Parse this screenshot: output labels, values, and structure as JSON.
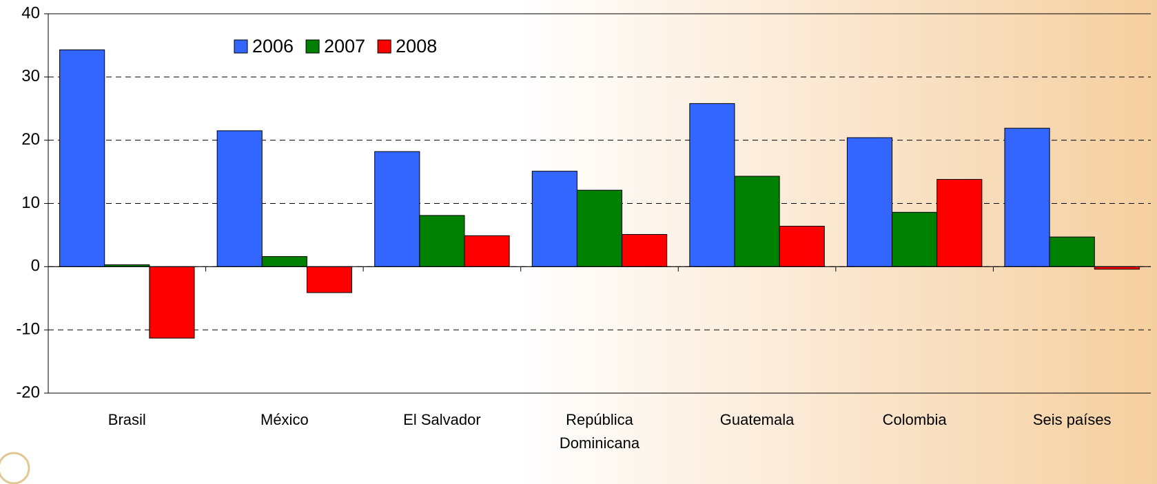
{
  "chart_data": {
    "type": "bar",
    "categories": [
      "Brasil",
      "México",
      "El Salvador",
      "República Dominicana",
      "Guatemala",
      "Colombia",
      "Seis países"
    ],
    "series": [
      {
        "name": "2006",
        "color": "#3366ff",
        "values": [
          34.3,
          21.5,
          18.2,
          15.1,
          25.8,
          20.4,
          21.9
        ]
      },
      {
        "name": "2007",
        "color": "#008000",
        "values": [
          0.3,
          1.6,
          8.1,
          12.1,
          14.3,
          8.6,
          4.7
        ]
      },
      {
        "name": "2008",
        "color": "#ff0000",
        "values": [
          -11.3,
          -4.1,
          4.9,
          5.1,
          6.4,
          13.8,
          -0.4
        ]
      }
    ],
    "ylim": [
      -20,
      40
    ],
    "yticks": [
      -20,
      -10,
      0,
      10,
      20,
      30,
      40
    ],
    "grid": true,
    "legend": "top"
  }
}
